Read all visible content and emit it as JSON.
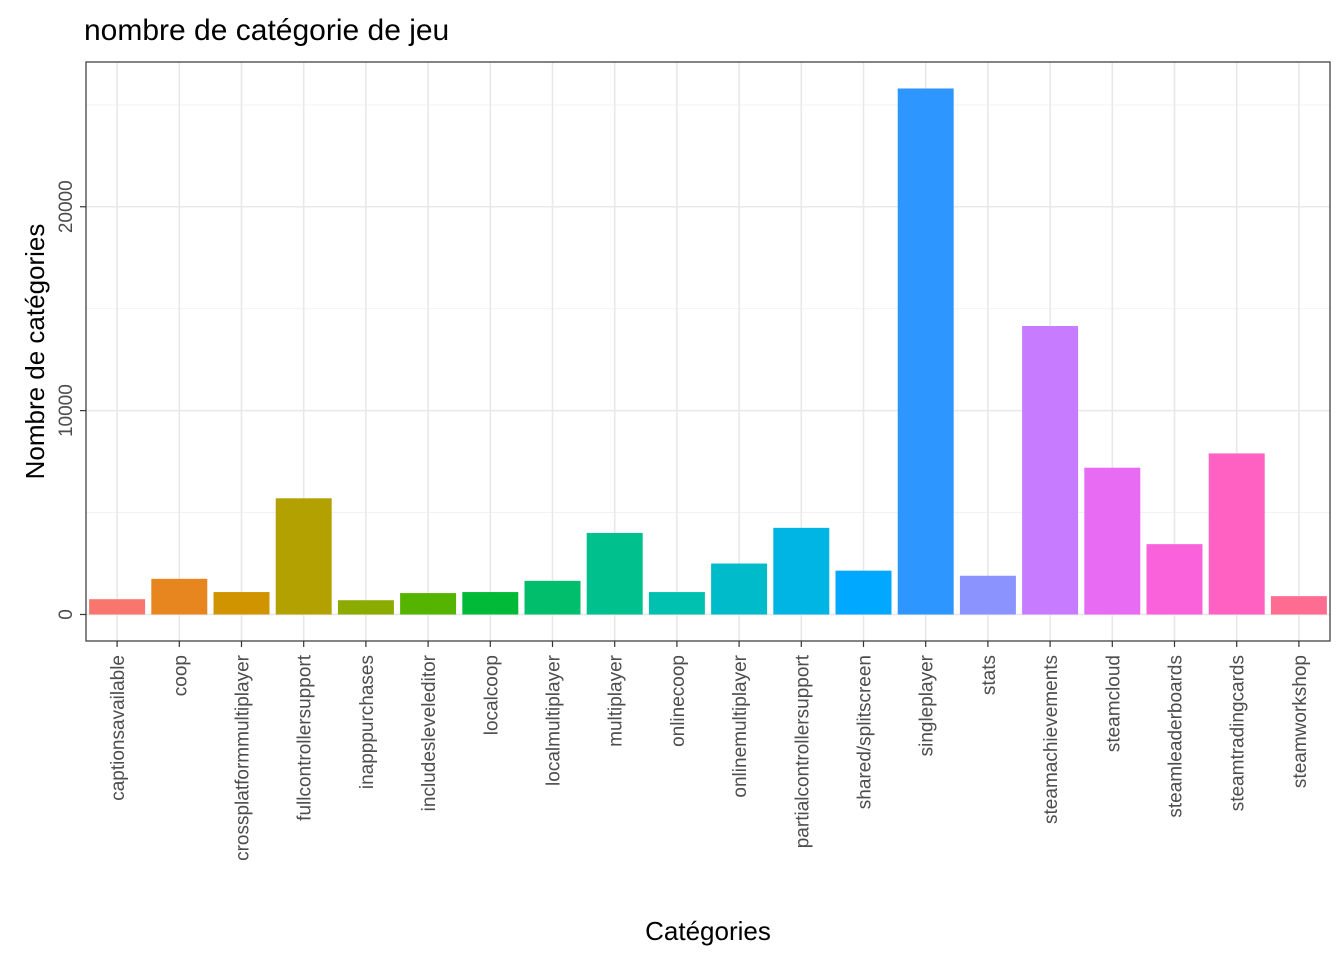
{
  "chart_data": {
    "type": "bar",
    "title": "nombre de catégorie de jeu",
    "xlabel": "Catégories",
    "ylabel": "Nombre de catégories",
    "ylim": [
      -1300,
      27100
    ],
    "yticks": [
      0,
      10000,
      20000
    ],
    "grid": true,
    "legend": "none",
    "categories": [
      "captionsavailable",
      "coop",
      "crossplatformmultiplayer",
      "fullcontrollersupport",
      "inapppurchases",
      "includesleveleditor",
      "localcoop",
      "localmultiplayer",
      "multiplayer",
      "onlinecoop",
      "onlinemultiplayer",
      "partialcontrollersupport",
      "shared/splitscreen",
      "singleplayer",
      "stats",
      "steamachievements",
      "steamcloud",
      "steamleaderboards",
      "steamtradingcards",
      "steamworkshop"
    ],
    "values": [
      750,
      1750,
      1100,
      5700,
      700,
      1050,
      1100,
      1650,
      4000,
      1100,
      2500,
      4250,
      2150,
      25800,
      1900,
      14150,
      7200,
      3450,
      7900,
      900
    ],
    "colors": [
      "#F8766D",
      "#E7851E",
      "#D09400",
      "#B2A100",
      "#8BAB00",
      "#55B400",
      "#00BA38",
      "#00BE6C",
      "#00C08E",
      "#00C0AF",
      "#00BCCB",
      "#00B4E4",
      "#00A9FF",
      "#2D96FF",
      "#8B93FF",
      "#C77CFF",
      "#E76BF3",
      "#FA62DB",
      "#FF61C3",
      "#FF6C91"
    ]
  }
}
